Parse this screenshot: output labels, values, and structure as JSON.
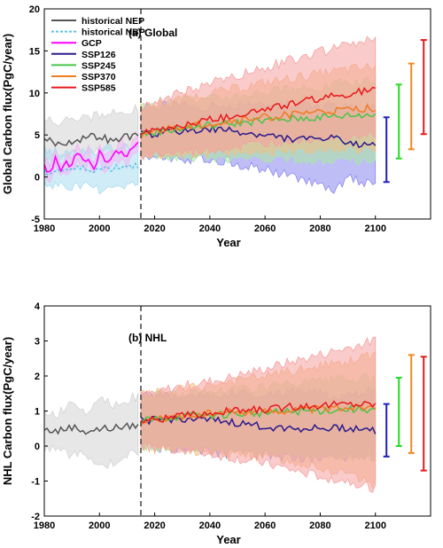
{
  "chart_data": [
    {
      "type": "line",
      "title": "(a) Global",
      "xlabel": "Year",
      "ylabel": "Global Carbon flux(PgC/year)",
      "xlim": [
        1980,
        2120
      ],
      "ylim": [
        -5,
        20
      ],
      "xticks": [
        1980,
        2000,
        2020,
        2040,
        2060,
        2080,
        2100
      ],
      "yticks": [
        -5,
        0,
        5,
        10,
        15,
        20
      ],
      "divider_year": 2015,
      "legend": {
        "placement": "top-left",
        "entries": [
          "historical NEP",
          "historical NBP",
          "GCP",
          "SSP126",
          "SSP245",
          "SSP370",
          "SSP585"
        ]
      },
      "series": [
        {
          "name": "historical NEP",
          "color": "#555555",
          "fill": "#d3d3d3",
          "x": [
            1980,
            1985,
            1990,
            1995,
            2000,
            2005,
            2010,
            2014
          ],
          "values": [
            4.6,
            3.9,
            4.3,
            4.7,
            4.9,
            4.2,
            4.9,
            4.8
          ],
          "lower": [
            2.5,
            2.6,
            2.6,
            3.0,
            3.1,
            2.9,
            3.3,
            3.1
          ],
          "upper": [
            6.6,
            6.6,
            7.3,
            7.0,
            7.4,
            7.6,
            8.0,
            8.3
          ]
        },
        {
          "name": "historical NBP",
          "color": "#5bc0e6",
          "fill": "#a8dcf0",
          "dashed": true,
          "x": [
            1980,
            1985,
            1990,
            1995,
            2000,
            2005,
            2010,
            2014
          ],
          "values": [
            0.5,
            0.8,
            0.9,
            1.0,
            0.9,
            1.1,
            1.4,
            1.3
          ],
          "lower": [
            -1.3,
            -0.9,
            -1.3,
            -0.8,
            -1.5,
            -1.2,
            -1.0,
            -0.6
          ],
          "upper": [
            3.3,
            3.0,
            2.8,
            3.4,
            3.1,
            3.4,
            3.6,
            4.0
          ]
        },
        {
          "name": "GCP",
          "color": "#ff00ff",
          "fill": "#f4b6f4",
          "x": [
            1980,
            1982,
            1984,
            1986,
            1988,
            1990,
            1992,
            1994,
            1996,
            1998,
            2000,
            2002,
            2004,
            2006,
            2008,
            2010,
            2012,
            2014
          ],
          "values": [
            1.5,
            0.6,
            2.2,
            1.0,
            1.4,
            1.7,
            2.9,
            1.6,
            2.5,
            1.1,
            2.8,
            1.8,
            2.2,
            2.7,
            3.5,
            2.1,
            3.4,
            3.8
          ],
          "lower": [
            0.6,
            -0.2,
            1.3,
            0.1,
            0.5,
            0.9,
            2.0,
            0.7,
            1.6,
            0.2,
            1.9,
            0.9,
            1.3,
            1.8,
            2.5,
            1.2,
            2.4,
            2.8
          ],
          "upper": [
            2.4,
            1.5,
            3.1,
            1.9,
            2.3,
            2.6,
            3.8,
            2.5,
            3.4,
            2.0,
            3.7,
            2.7,
            3.1,
            3.6,
            4.5,
            3.0,
            4.4,
            4.8
          ]
        },
        {
          "name": "SSP126",
          "color": "#2b1a8c",
          "fill": "#8b87ef",
          "x": [
            2015,
            2030,
            2045,
            2060,
            2075,
            2085,
            2090,
            2100
          ],
          "values": [
            5.0,
            5.5,
            5.6,
            4.9,
            4.4,
            4.7,
            3.8,
            4.1
          ],
          "lower": [
            2.4,
            2.2,
            2.0,
            0.8,
            -0.3,
            -1.9,
            -0.2,
            -0.8
          ],
          "upper": [
            8.3,
            8.6,
            8.3,
            8.7,
            8.8,
            8.4,
            8.6,
            8.3
          ]
        },
        {
          "name": "SSP245",
          "color": "#49c44a",
          "fill": "#a9e8a1",
          "x": [
            2015,
            2030,
            2045,
            2060,
            2075,
            2090,
            2100
          ],
          "values": [
            5.1,
            5.8,
            6.3,
            6.7,
            7.0,
            7.3,
            7.4
          ],
          "lower": [
            2.6,
            2.4,
            2.3,
            2.0,
            2.0,
            2.0,
            2.1
          ],
          "upper": [
            8.3,
            9.0,
            9.6,
            10.3,
            10.6,
            11.2,
            11.6
          ]
        },
        {
          "name": "SSP370",
          "color": "#f07b22",
          "fill": "#f2c081",
          "x": [
            2015,
            2030,
            2045,
            2060,
            2075,
            2090,
            2100
          ],
          "values": [
            5.0,
            6.0,
            6.5,
            7.1,
            7.6,
            7.9,
            8.2
          ],
          "lower": [
            2.5,
            2.8,
            3.0,
            3.1,
            3.2,
            3.3,
            3.4
          ],
          "upper": [
            8.1,
            9.3,
            10.2,
            11.2,
            12.0,
            12.8,
            13.1
          ]
        },
        {
          "name": "SSP585",
          "color": "#e8191c",
          "fill": "#f5a0a0",
          "x": [
            2015,
            2030,
            2045,
            2060,
            2075,
            2090,
            2100
          ],
          "values": [
            5.1,
            6.2,
            7.1,
            8.1,
            9.1,
            9.9,
            10.4
          ],
          "lower": [
            2.6,
            2.9,
            3.4,
            4.0,
            4.6,
            5.0,
            5.2
          ],
          "upper": [
            8.4,
            10.0,
            11.6,
            13.0,
            14.4,
            15.7,
            16.4
          ]
        }
      ],
      "range_bars": [
        {
          "name": "SSP126",
          "color": "#2020c0",
          "low": -0.6,
          "high": 7.1
        },
        {
          "name": "SSP245",
          "color": "#22dd22",
          "low": 2.2,
          "high": 11.0
        },
        {
          "name": "SSP370",
          "color": "#ef8a1e",
          "low": 3.3,
          "high": 13.5
        },
        {
          "name": "SSP585",
          "color": "#e8191c",
          "low": 5.1,
          "high": 16.3
        }
      ]
    },
    {
      "type": "line",
      "title": "(b) NHL",
      "xlabel": "Year",
      "ylabel": "NHL Carbon flux(PgC/year)",
      "xlim": [
        1980,
        2120
      ],
      "ylim": [
        -2,
        4
      ],
      "xticks": [
        1980,
        2000,
        2020,
        2040,
        2060,
        2080,
        2100
      ],
      "yticks": [
        -2,
        -1,
        0,
        1,
        2,
        3,
        4
      ],
      "divider_year": 2015,
      "series": [
        {
          "name": "historical NEP",
          "color": "#555555",
          "fill": "#d3d3d3",
          "x": [
            1980,
            1985,
            1990,
            1995,
            2000,
            2005,
            2010,
            2014
          ],
          "values": [
            0.46,
            0.43,
            0.55,
            0.42,
            0.48,
            0.52,
            0.55,
            0.62
          ],
          "lower": [
            -0.05,
            -0.1,
            -0.3,
            -0.2,
            -0.6,
            -0.5,
            -0.2,
            -0.2
          ],
          "upper": [
            0.95,
            0.9,
            1.3,
            1.0,
            1.4,
            1.2,
            1.35,
            1.4
          ]
        },
        {
          "name": "SSP126",
          "color": "#2b1a8c",
          "fill": "#8b87ef",
          "x": [
            2015,
            2030,
            2045,
            2060,
            2075,
            2090,
            2100
          ],
          "values": [
            0.72,
            0.78,
            0.7,
            0.55,
            0.5,
            0.52,
            0.45
          ],
          "lower": [
            0.0,
            -0.1,
            -0.2,
            -0.25,
            -0.35,
            -0.3,
            -0.3
          ],
          "upper": [
            1.4,
            1.45,
            1.5,
            1.5,
            1.55,
            1.4,
            1.6
          ]
        },
        {
          "name": "SSP245",
          "color": "#49c44a",
          "fill": "#a9e8a1",
          "x": [
            2015,
            2030,
            2045,
            2060,
            2075,
            2090,
            2100
          ],
          "values": [
            0.72,
            0.85,
            0.9,
            0.95,
            1.0,
            1.05,
            1.05
          ],
          "lower": [
            0.0,
            -0.05,
            -0.1,
            -0.15,
            -0.2,
            -0.3,
            -0.3
          ],
          "upper": [
            1.4,
            1.5,
            1.6,
            1.7,
            1.8,
            1.9,
            1.95
          ]
        },
        {
          "name": "SSP370",
          "color": "#f07b22",
          "fill": "#f2c081",
          "x": [
            2015,
            2030,
            2045,
            2060,
            2075,
            2090,
            2100
          ],
          "values": [
            0.7,
            0.85,
            0.95,
            1.0,
            1.05,
            1.1,
            1.15
          ],
          "lower": [
            -0.05,
            -0.1,
            -0.2,
            -0.3,
            -0.5,
            -0.8,
            -1.1
          ],
          "upper": [
            1.45,
            1.6,
            1.8,
            2.0,
            2.2,
            2.4,
            2.6
          ]
        },
        {
          "name": "SSP585",
          "color": "#e8191c",
          "fill": "#f5a0a0",
          "x": [
            2015,
            2030,
            2045,
            2060,
            2075,
            2090,
            2100
          ],
          "values": [
            0.72,
            0.85,
            0.98,
            1.05,
            1.15,
            1.2,
            1.2
          ],
          "lower": [
            0.0,
            -0.1,
            -0.3,
            -0.5,
            -0.8,
            -1.0,
            -1.2
          ],
          "upper": [
            1.45,
            1.7,
            1.9,
            2.2,
            2.5,
            2.8,
            3.0
          ]
        }
      ],
      "range_bars": [
        {
          "name": "SSP126",
          "color": "#2020c0",
          "low": -0.3,
          "high": 1.2
        },
        {
          "name": "SSP245",
          "color": "#22dd22",
          "low": 0.0,
          "high": 1.95
        },
        {
          "name": "SSP370",
          "color": "#ef8a1e",
          "low": -0.2,
          "high": 2.6
        },
        {
          "name": "SSP585",
          "color": "#e8191c",
          "low": -0.7,
          "high": 2.55
        }
      ]
    }
  ]
}
